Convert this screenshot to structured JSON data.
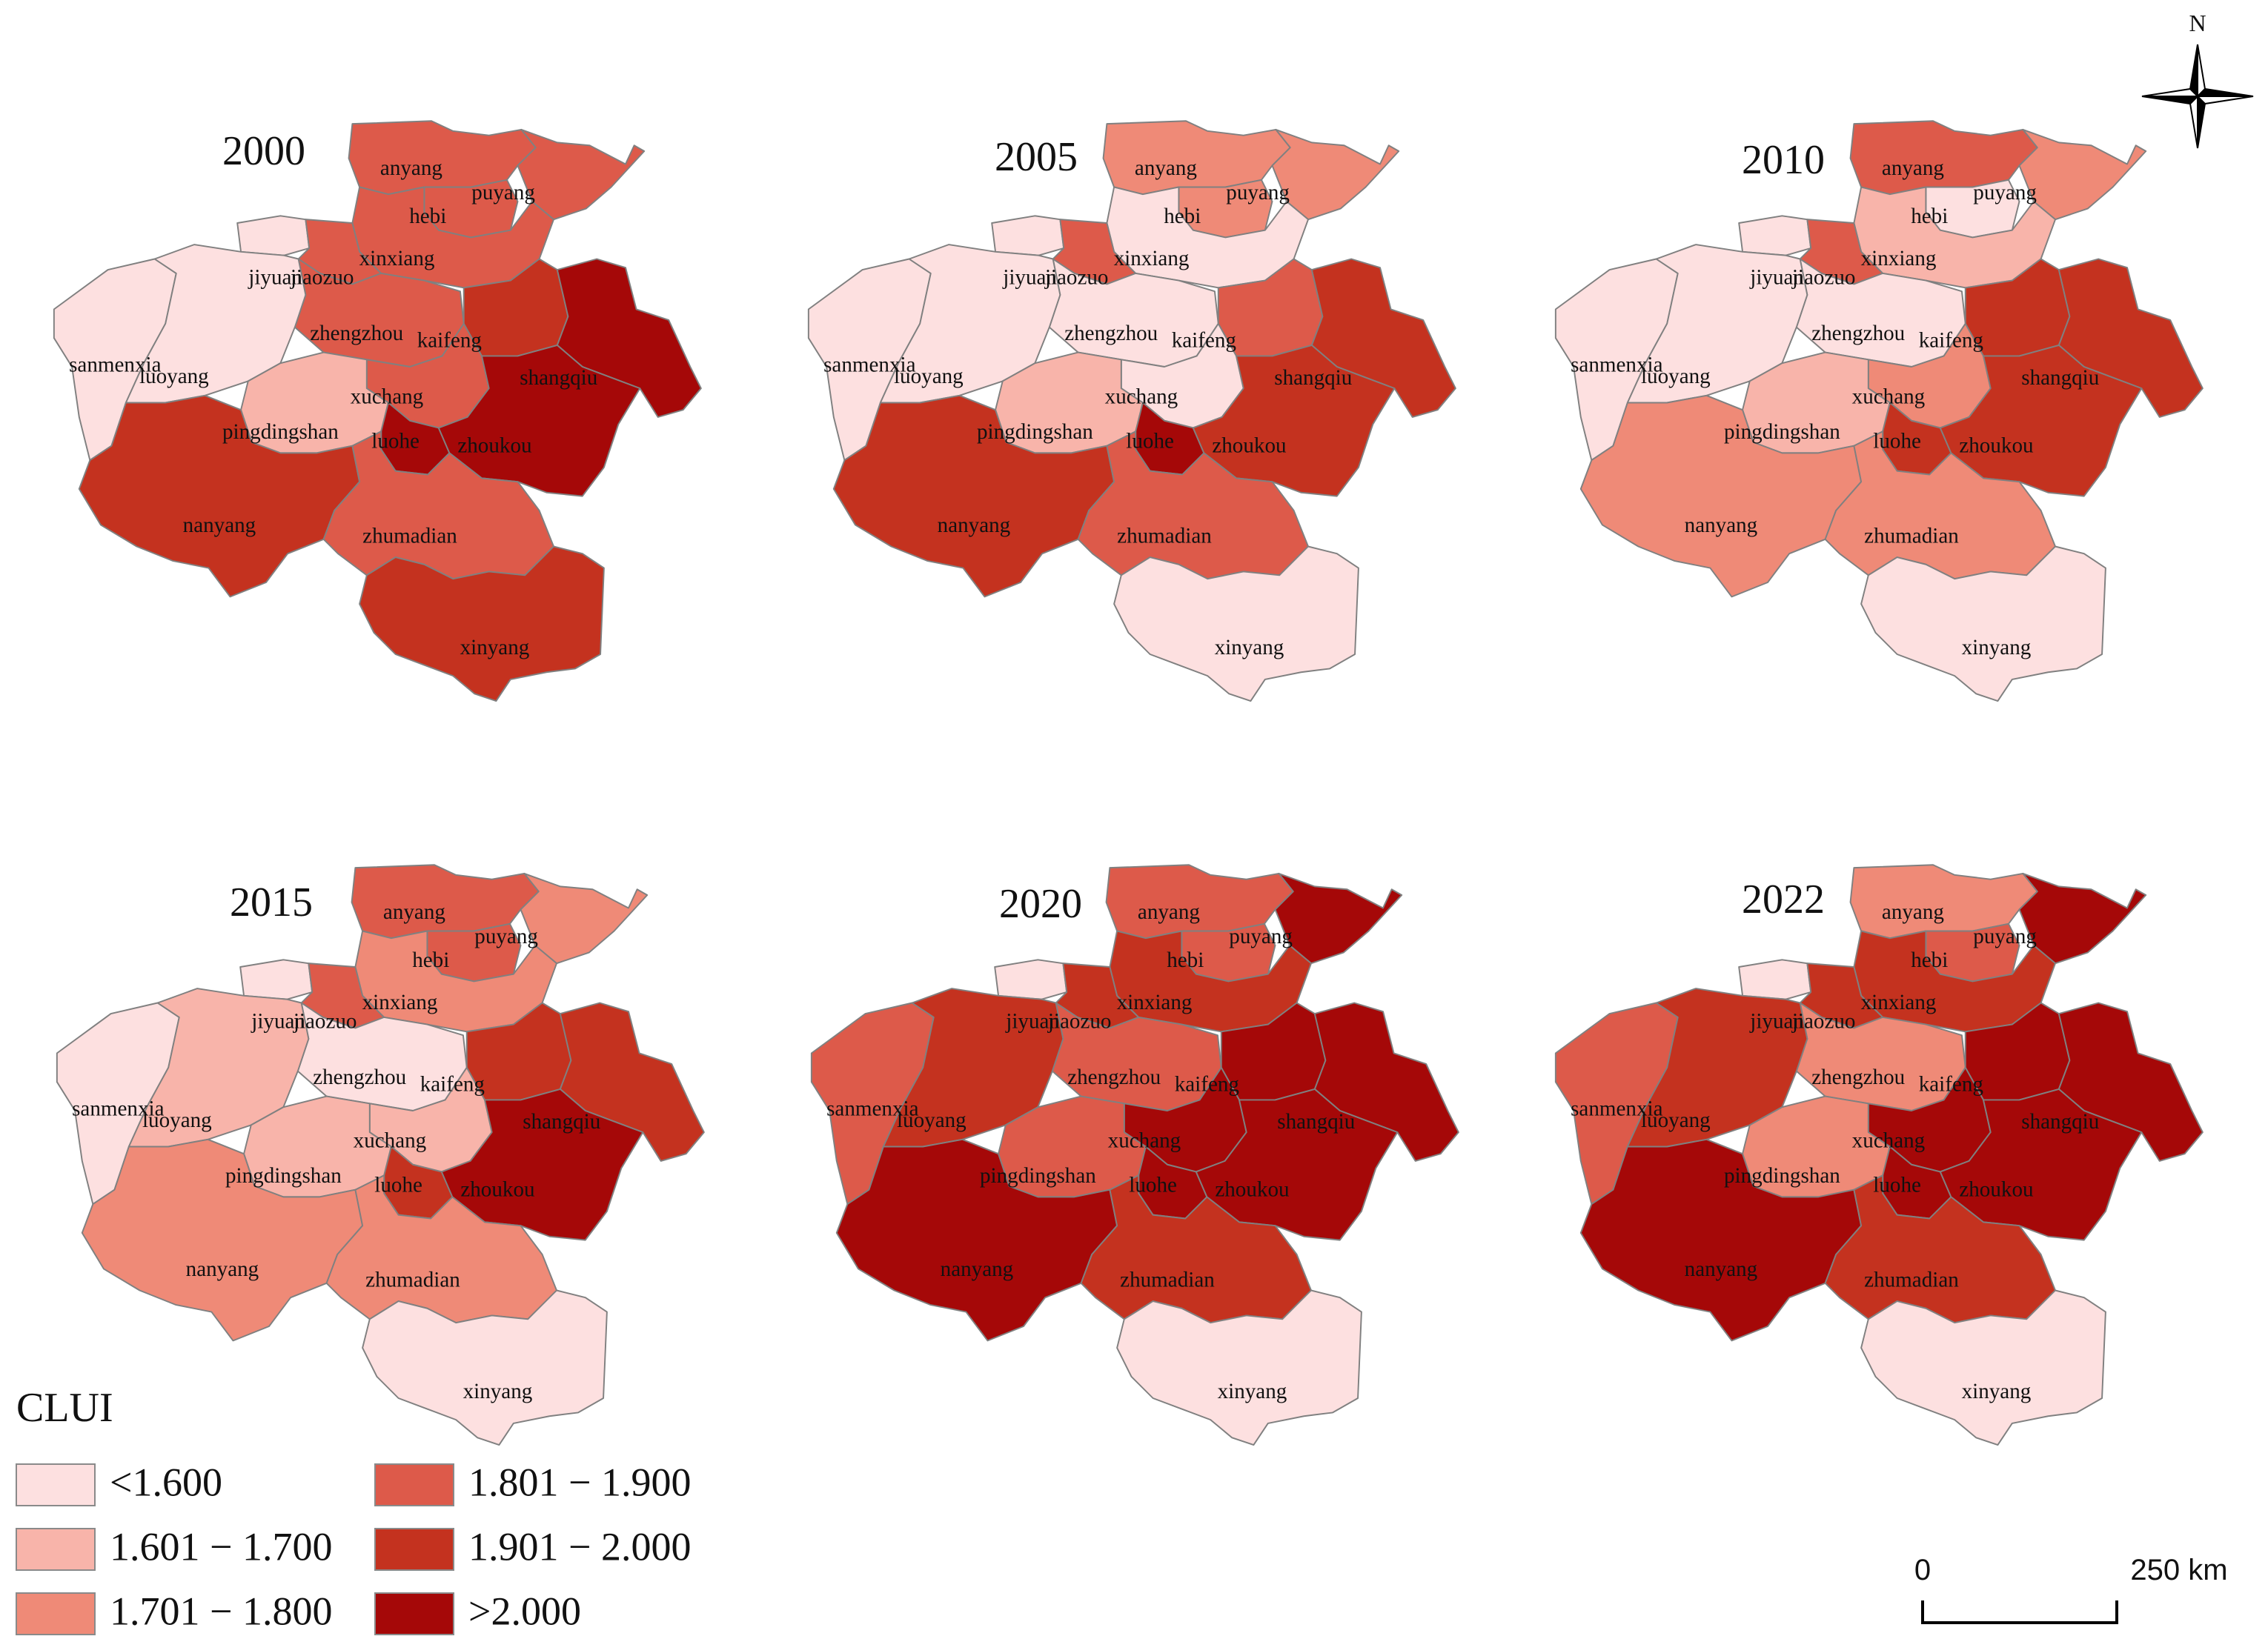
{
  "legend": {
    "title": "CLUI",
    "classes": [
      {
        "label": "<1.600",
        "color": "#fde0e0"
      },
      {
        "label": "1.601 − 1.700",
        "color": "#f8b4aa"
      },
      {
        "label": "1.701 − 1.800",
        "color": "#ef8a77"
      },
      {
        "label": "1.801 − 1.900",
        "color": "#dd5a4a"
      },
      {
        "label": "1.901 − 2.000",
        "color": "#c4321f"
      },
      {
        "label": ">2.000",
        "color": "#a50808"
      }
    ]
  },
  "scalebar": {
    "start": "0",
    "end": "250 km"
  },
  "north": {
    "label": "N"
  },
  "regions": [
    "anyang",
    "puyang",
    "hebi",
    "xinxiang",
    "jiyuan",
    "jiaozuo",
    "zhengzhou",
    "kaifeng",
    "shangqiu",
    "sanmenxia",
    "luoyang",
    "xuchang",
    "pingdingshan",
    "luohe",
    "zhoukou",
    "nanyang",
    "zhumadian",
    "xinyang"
  ],
  "maps": [
    {
      "year": "2000",
      "classes": {
        "anyang": 3,
        "puyang": 3,
        "hebi": 3,
        "xinxiang": 3,
        "jiyuan": 0,
        "jiaozuo": 3,
        "zhengzhou": 3,
        "kaifeng": 4,
        "shangqiu": 5,
        "sanmenxia": 0,
        "luoyang": 0,
        "xuchang": 3,
        "pingdingshan": 1,
        "luohe": 5,
        "zhoukou": 5,
        "nanyang": 4,
        "zhumadian": 3,
        "xinyang": 4
      }
    },
    {
      "year": "2005",
      "classes": {
        "anyang": 2,
        "puyang": 2,
        "hebi": 2,
        "xinxiang": 0,
        "jiyuan": 0,
        "jiaozuo": 3,
        "zhengzhou": 0,
        "kaifeng": 3,
        "shangqiu": 4,
        "sanmenxia": 0,
        "luoyang": 0,
        "xuchang": 0,
        "pingdingshan": 1,
        "luohe": 5,
        "zhoukou": 4,
        "nanyang": 4,
        "zhumadian": 3,
        "xinyang": 0
      }
    },
    {
      "year": "2010",
      "classes": {
        "anyang": 3,
        "puyang": 2,
        "hebi": 0,
        "xinxiang": 1,
        "jiyuan": 0,
        "jiaozuo": 3,
        "zhengzhou": 0,
        "kaifeng": 4,
        "shangqiu": 4,
        "sanmenxia": 0,
        "luoyang": 0,
        "xuchang": 2,
        "pingdingshan": 1,
        "luohe": 4,
        "zhoukou": 4,
        "nanyang": 2,
        "zhumadian": 2,
        "xinyang": 0
      }
    },
    {
      "year": "2015",
      "classes": {
        "anyang": 3,
        "puyang": 2,
        "hebi": 3,
        "xinxiang": 2,
        "jiyuan": 0,
        "jiaozuo": 3,
        "zhengzhou": 0,
        "kaifeng": 4,
        "shangqiu": 4,
        "sanmenxia": 0,
        "luoyang": 1,
        "xuchang": 1,
        "pingdingshan": 1,
        "luohe": 4,
        "zhoukou": 5,
        "nanyang": 2,
        "zhumadian": 2,
        "xinyang": 0
      }
    },
    {
      "year": "2020",
      "classes": {
        "anyang": 3,
        "puyang": 5,
        "hebi": 3,
        "xinxiang": 4,
        "jiyuan": 0,
        "jiaozuo": 4,
        "zhengzhou": 3,
        "kaifeng": 5,
        "shangqiu": 5,
        "sanmenxia": 3,
        "luoyang": 4,
        "xuchang": 5,
        "pingdingshan": 3,
        "luohe": 5,
        "zhoukou": 5,
        "nanyang": 5,
        "zhumadian": 4,
        "xinyang": 0
      }
    },
    {
      "year": "2022",
      "classes": {
        "anyang": 2,
        "puyang": 5,
        "hebi": 3,
        "xinxiang": 4,
        "jiyuan": 0,
        "jiaozuo": 4,
        "zhengzhou": 2,
        "kaifeng": 5,
        "shangqiu": 5,
        "sanmenxia": 3,
        "luoyang": 4,
        "xuchang": 5,
        "pingdingshan": 2,
        "luohe": 5,
        "zhoukou": 5,
        "nanyang": 5,
        "zhumadian": 4,
        "xinyang": 0
      }
    }
  ]
}
